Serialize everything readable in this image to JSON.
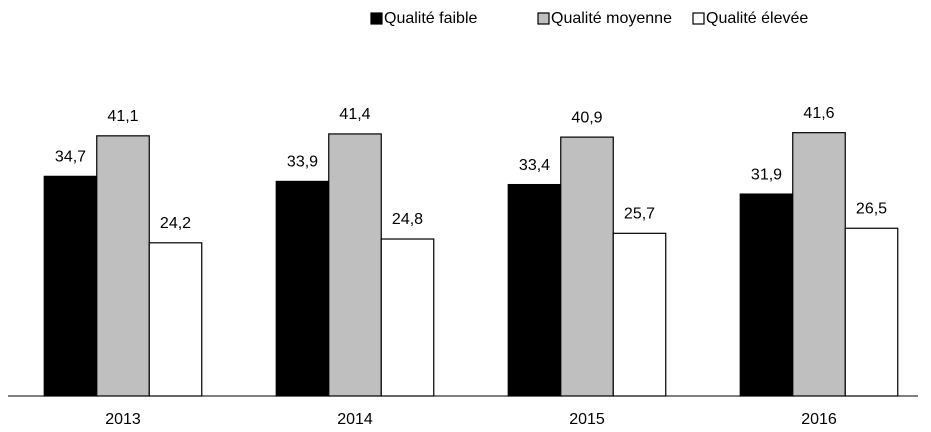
{
  "chart_data": {
    "type": "bar",
    "categories": [
      "2013",
      "2014",
      "2015",
      "2016"
    ],
    "series": [
      {
        "name": "Qualité faible",
        "color": "#000000",
        "values": [
          34.7,
          33.9,
          33.4,
          31.9
        ],
        "value_labels": [
          "34,7",
          "33,9",
          "33,4",
          "31,9"
        ]
      },
      {
        "name": "Qualité moyenne",
        "color": "#bfbfbf",
        "values": [
          41.1,
          41.4,
          40.9,
          41.6
        ],
        "value_labels": [
          "41,1",
          "41,4",
          "40,9",
          "41,6"
        ]
      },
      {
        "name": "Qualité élevée",
        "color": "#ffffff",
        "values": [
          24.2,
          24.8,
          25.7,
          26.5
        ],
        "value_labels": [
          "24,2",
          "24,8",
          "25,7",
          "26,5"
        ]
      }
    ],
    "legend": "top-right"
  }
}
